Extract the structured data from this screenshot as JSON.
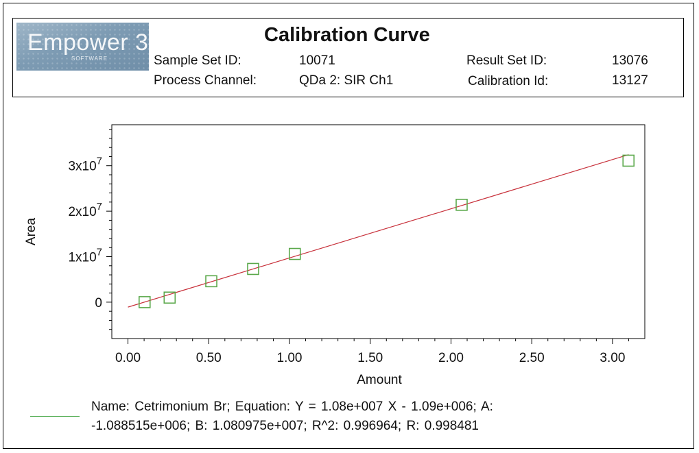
{
  "header": {
    "logo": {
      "text": "Empower 3",
      "sub": "SOFTWARE"
    },
    "title": "Calibration Curve",
    "sample_set_label": "Sample Set ID:",
    "sample_set_value": "10071",
    "result_set_label": "Result Set ID:",
    "result_set_value": "13076",
    "process_channel_label": "Process Channel:",
    "process_channel_value": "QDa 2: SIR Ch1",
    "calibration_label": "Calibration Id:",
    "calibration_value": "13127"
  },
  "chart_data": {
    "type": "scatter",
    "xlabel": "Amount",
    "ylabel": "Area",
    "xlim": [
      -0.1,
      3.2
    ],
    "ylim": [
      -8000000,
      39000000
    ],
    "x_ticks": [
      0.0,
      0.5,
      1.0,
      1.5,
      2.0,
      2.5,
      3.0
    ],
    "x_tick_labels": [
      "0.00",
      "0.50",
      "1.00",
      "1.50",
      "2.00",
      "2.50",
      "3.00"
    ],
    "y_ticks": [
      0,
      10000000,
      20000000,
      30000000
    ],
    "y_tick_labels": [
      {
        "base": "0",
        "exp": ""
      },
      {
        "base": "1x10",
        "exp": "7"
      },
      {
        "base": "2x10",
        "exp": "7"
      },
      {
        "base": "3x10",
        "exp": "7"
      }
    ],
    "points": {
      "x": [
        0.103,
        0.258,
        0.516,
        0.775,
        1.033,
        2.066,
        3.099
      ],
      "y": [
        0,
        1000000,
        4600000,
        7300000,
        10600000,
        21400000,
        31100000
      ],
      "marker": "open-square",
      "color": "#5aa84a"
    },
    "fit_line": {
      "x_start": 0.0,
      "x_end": 3.1,
      "slope": 10809750,
      "intercept": -1088515,
      "color": "#c8323c"
    },
    "grid": false
  },
  "legend": {
    "line_color": "#4aa84a",
    "text_line1": "Name:  Cetrimonium Br; Equation:  Y = 1.08e+007 X - 1.09e+006;   A:",
    "text_line2": "-1.088515e+006;   B:  1.080975e+007;   R^2:  0.996964; R:  0.998481"
  }
}
